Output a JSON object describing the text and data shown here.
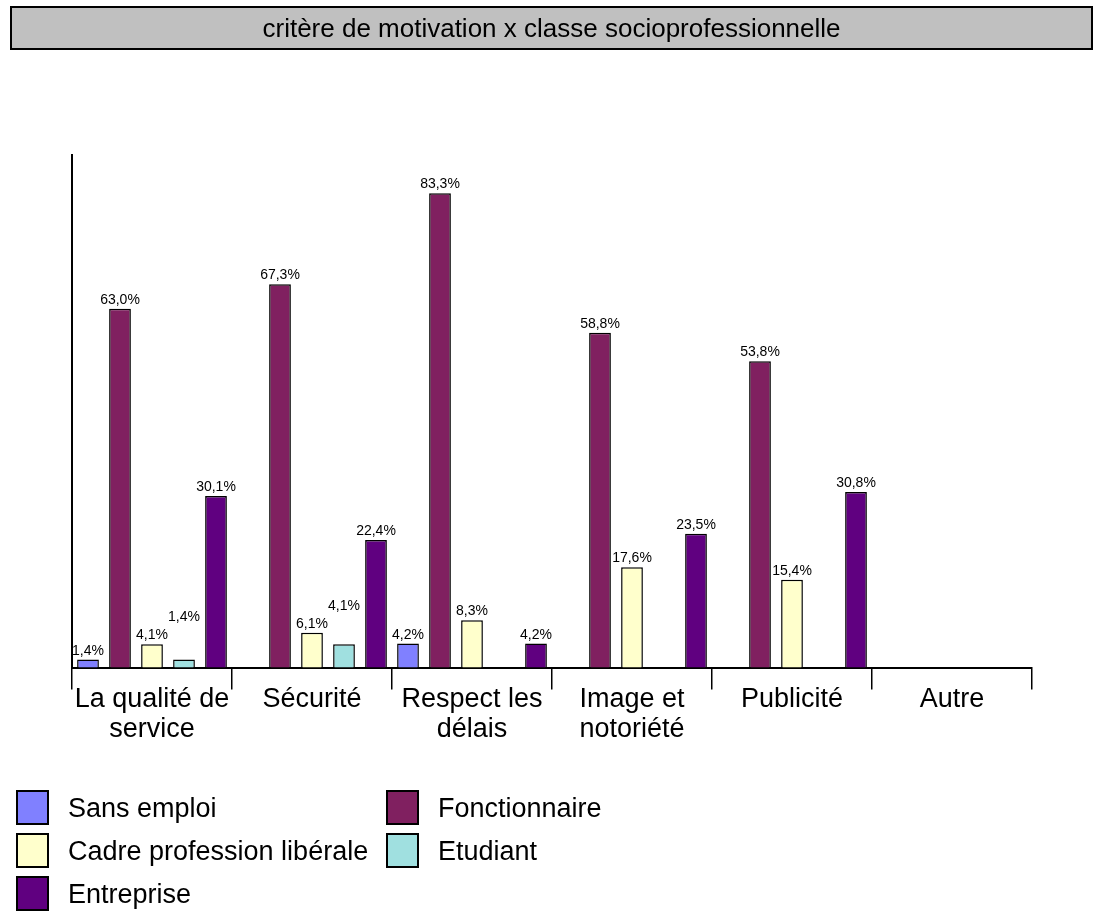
{
  "chart_data": {
    "type": "bar",
    "title": "critère de motivation x classe socioprofessionnelle",
    "categories": [
      "La qualité de service",
      "Sécurité",
      "Respect les délais",
      "Image et notoriété",
      "Publicité",
      "Autre"
    ],
    "tick_labels": "x",
    "legend": "bottom left",
    "series": [
      {
        "name": "Sans emploi",
        "color": "#8080ff",
        "values": [
          1.4,
          null,
          4.2,
          null,
          null,
          null
        ],
        "value_labels": [
          "1,4%",
          null,
          "4,2%",
          null,
          null,
          null
        ]
      },
      {
        "name": "Fonctionnaire",
        "color": "#802060",
        "values": [
          63.0,
          67.3,
          83.3,
          58.8,
          53.8,
          null
        ],
        "value_labels": [
          "63,0%",
          "67,3%",
          "83,3%",
          "58,8%",
          "53,8%",
          null
        ]
      },
      {
        "name": "Cadre profession libérale",
        "color": "#ffffcc",
        "values": [
          4.1,
          6.1,
          8.3,
          17.6,
          15.4,
          null
        ],
        "value_labels": [
          "4,1%",
          "6,1%",
          "8,3%",
          "17,6%",
          "15,4%",
          null
        ]
      },
      {
        "name": "Etudiant",
        "color": "#a0e0e0",
        "values": [
          1.4,
          4.1,
          null,
          null,
          null,
          null
        ],
        "value_labels": [
          "1,4%",
          "4,1%",
          null,
          null,
          null,
          null
        ]
      },
      {
        "name": "Entreprise",
        "color": "#600080",
        "values": [
          30.1,
          22.4,
          4.2,
          23.5,
          30.8,
          null
        ],
        "value_labels": [
          "30,1%",
          "22,4%",
          "4,2%",
          "23,5%",
          "30,8%",
          null
        ]
      }
    ]
  }
}
